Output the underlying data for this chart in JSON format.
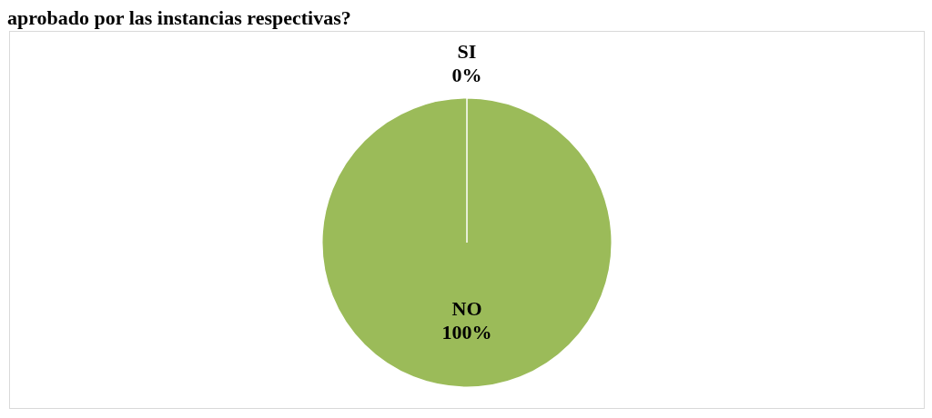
{
  "chart_data": {
    "type": "pie",
    "title": "aprobado por las instancias respectivas?",
    "categories": [
      "SI",
      "NO"
    ],
    "values": [
      0,
      100
    ],
    "colors": [
      "#9bbb59",
      "#9bbb59"
    ],
    "value_labels": [
      "0%",
      "100%"
    ]
  }
}
